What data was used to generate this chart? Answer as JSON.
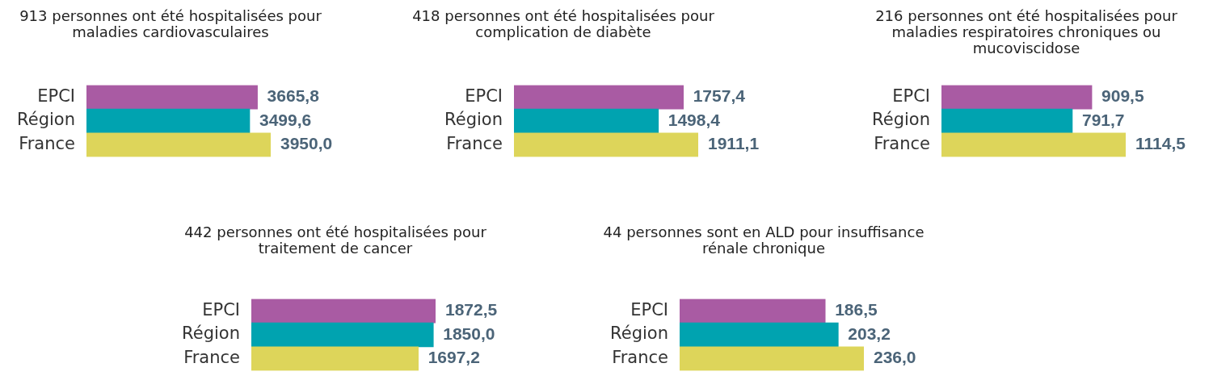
{
  "chart_data": [
    {
      "type": "bar",
      "orientation": "horizontal",
      "title": "913 personnes ont été hospitalisées pour maladies cardiovasculaires",
      "categories": [
        "EPCI",
        "Région",
        "France"
      ],
      "values": [
        3665.8,
        3499.6,
        3950.0
      ],
      "value_labels": [
        "3665,8",
        "3499,6",
        "3950,0"
      ],
      "colors": [
        "#a95ba3",
        "#00a3b0",
        "#ddd55a"
      ],
      "grid": false,
      "legend": false,
      "tick_labels": "y"
    },
    {
      "type": "bar",
      "orientation": "horizontal",
      "title": "418 personnes ont été hospitalisées pour complication de diabète",
      "categories": [
        "EPCI",
        "Région",
        "France"
      ],
      "values": [
        1757.4,
        1498.4,
        1911.1
      ],
      "value_labels": [
        "1757,4",
        "1498,4",
        "1911,1"
      ],
      "colors": [
        "#a95ba3",
        "#00a3b0",
        "#ddd55a"
      ],
      "grid": false,
      "legend": false,
      "tick_labels": "y"
    },
    {
      "type": "bar",
      "orientation": "horizontal",
      "title": "216 personnes ont été hospitalisées pour maladies respiratoires chroniques ou mucoviscidose",
      "categories": [
        "EPCI",
        "Région",
        "France"
      ],
      "values": [
        909.5,
        791.7,
        1114.5
      ],
      "value_labels": [
        "909,5",
        "791,7",
        "1114,5"
      ],
      "colors": [
        "#a95ba3",
        "#00a3b0",
        "#ddd55a"
      ],
      "grid": false,
      "legend": false,
      "tick_labels": "y"
    },
    {
      "type": "bar",
      "orientation": "horizontal",
      "title": "442 personnes ont été hospitalisées pour traitement de cancer",
      "categories": [
        "EPCI",
        "Région",
        "France"
      ],
      "values": [
        1872.5,
        1850.0,
        1697.2
      ],
      "value_labels": [
        "1872,5",
        "1850,0",
        "1697,2"
      ],
      "colors": [
        "#a95ba3",
        "#00a3b0",
        "#ddd55a"
      ],
      "grid": false,
      "legend": false,
      "tick_labels": "y"
    },
    {
      "type": "bar",
      "orientation": "horizontal",
      "title": "44 personnes sont en ALD pour insuffisance rénale chronique",
      "categories": [
        "EPCI",
        "Région",
        "France"
      ],
      "values": [
        186.5,
        203.2,
        236.0
      ],
      "value_labels": [
        "186,5",
        "203,2",
        "236,0"
      ],
      "colors": [
        "#a95ba3",
        "#00a3b0",
        "#ddd55a"
      ],
      "grid": false,
      "legend": false,
      "tick_labels": "y"
    }
  ]
}
